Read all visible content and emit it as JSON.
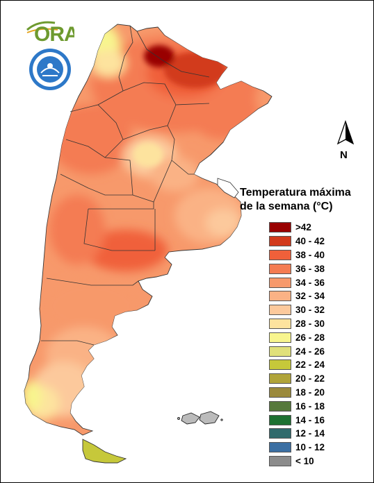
{
  "legend": {
    "title_line1": "Temperatura máxima",
    "title_line2": "de la semana (°C)",
    "items": [
      {
        "label": ">42",
        "color": "#990000"
      },
      {
        "label": "40 - 42",
        "color": "#d23a1c"
      },
      {
        "label": "38 - 40",
        "color": "#f0603a"
      },
      {
        "label": "36 - 38",
        "color": "#f47c52"
      },
      {
        "label": "34 - 36",
        "color": "#f7996b"
      },
      {
        "label": "32 - 34",
        "color": "#fab285"
      },
      {
        "label": "30 - 32",
        "color": "#fcc99c"
      },
      {
        "label": "28 - 30",
        "color": "#fde39e"
      },
      {
        "label": "26 - 28",
        "color": "#f8f58e"
      },
      {
        "label": "24 - 26",
        "color": "#e0e07a"
      },
      {
        "label": "22 - 24",
        "color": "#c6c83a"
      },
      {
        "label": "20 - 22",
        "color": "#b0a43a"
      },
      {
        "label": "18 - 20",
        "color": "#9b8a3c"
      },
      {
        "label": "16 - 18",
        "color": "#56793b"
      },
      {
        "label": "14 - 16",
        "color": "#1d7131"
      },
      {
        "label": "12 - 14",
        "color": "#2f6a6c"
      },
      {
        "label": "10 - 12",
        "color": "#3b6fa3"
      },
      {
        "label": "< 10",
        "color": "#8c8c8c"
      }
    ]
  },
  "north_arrow": {
    "label": "N"
  },
  "logos": {
    "ora_text": "ORA",
    "smn_name": "smn-seal"
  }
}
